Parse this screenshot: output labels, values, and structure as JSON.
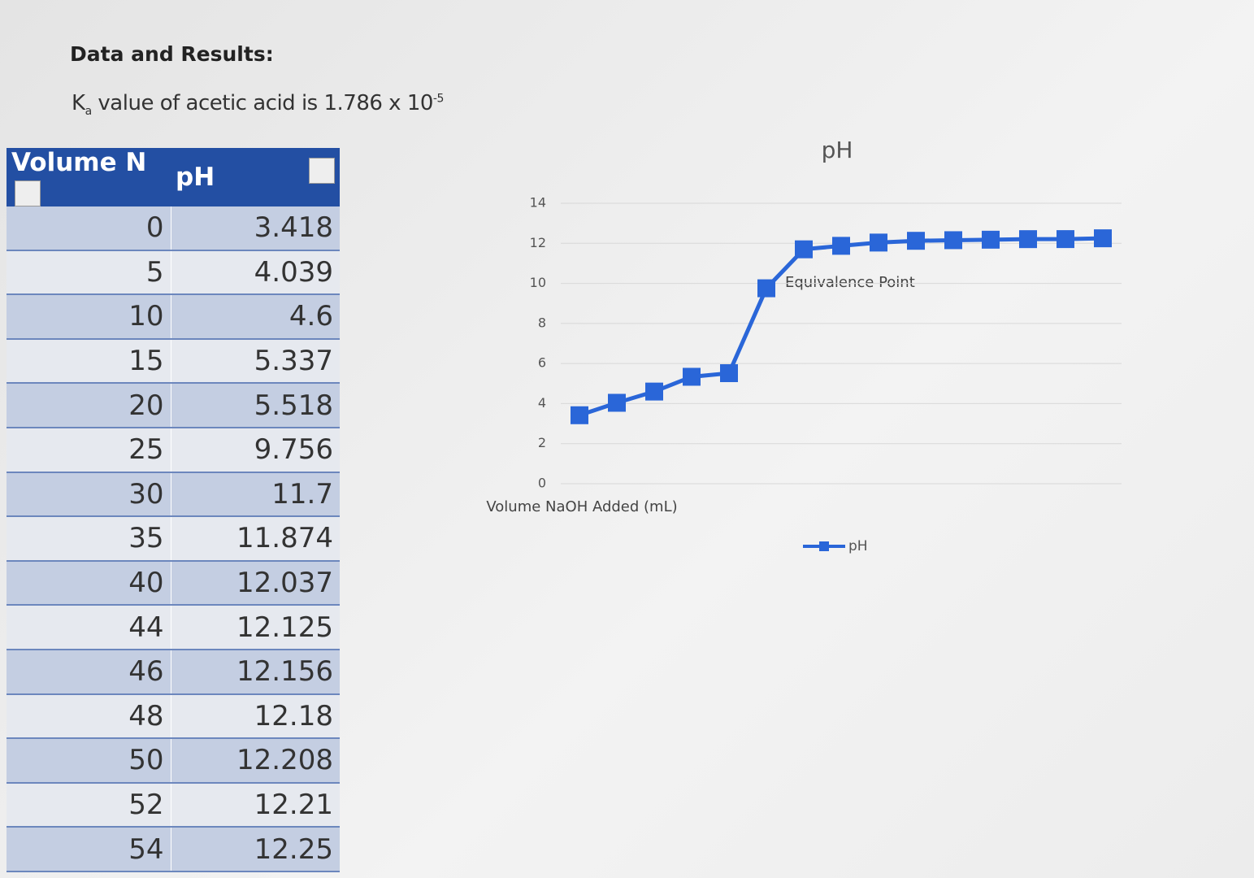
{
  "header": {
    "title": "Data and Results:",
    "ka_symbol": "K",
    "ka_subscript": "a",
    "ka_text": "value of acetic acid is 1.786 x 10",
    "ka_exponent": "-5"
  },
  "table": {
    "columns": [
      "Volume N",
      "pH"
    ],
    "rows": [
      [
        0,
        3.418
      ],
      [
        5,
        4.039
      ],
      [
        10,
        4.6
      ],
      [
        15,
        5.337
      ],
      [
        20,
        5.518
      ],
      [
        25,
        9.756
      ],
      [
        30,
        11.7
      ],
      [
        35,
        11.874
      ],
      [
        40,
        12.037
      ],
      [
        44,
        12.125
      ],
      [
        46,
        12.156
      ],
      [
        48,
        12.18
      ],
      [
        50,
        12.208
      ],
      [
        52,
        12.21
      ],
      [
        54,
        12.25
      ]
    ]
  },
  "chart_data": {
    "type": "line",
    "title": "pH",
    "x_label": "Volume NaOH Added (mL)",
    "annotation": "Equivalence Point",
    "categories": [
      null,
      null,
      null,
      null,
      null,
      null,
      null,
      null,
      null,
      null,
      null,
      null,
      null,
      null,
      null
    ],
    "series": [
      {
        "name": "pH",
        "color": "#2a66d8",
        "values": [
          3.418,
          4.039,
          4.6,
          5.337,
          5.518,
          9.756,
          11.7,
          11.874,
          12.037,
          12.125,
          12.156,
          12.18,
          12.208,
          12.21,
          12.25
        ]
      }
    ],
    "ylim": [
      0,
      14
    ],
    "yticks": [
      0,
      2,
      4,
      6,
      8,
      10,
      12,
      14
    ],
    "grid": true,
    "legend": "bottom"
  }
}
